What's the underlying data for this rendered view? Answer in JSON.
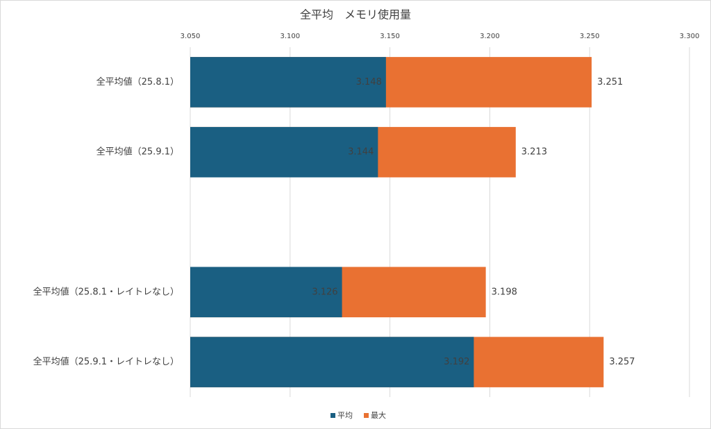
{
  "chart_data": {
    "type": "bar",
    "orientation": "horizontal",
    "overlap": true,
    "title": "全平均　メモリ使用量",
    "categories": [
      "全平均値（25.8.1）",
      "全平均値（25.9.1）",
      null,
      "全平均値（25.8.1・レイトレなし）",
      "全平均値（25.9.1・レイトレなし）"
    ],
    "series": [
      {
        "name": "最大",
        "color": "#e97132",
        "values": [
          3.251,
          3.213,
          null,
          3.198,
          3.257
        ]
      },
      {
        "name": "平均",
        "color": "#1a5f82",
        "values": [
          3.148,
          3.144,
          null,
          3.126,
          3.192
        ]
      }
    ],
    "xlim": [
      3.05,
      3.3
    ],
    "xticks": [
      {
        "value": 3.05,
        "label": "3.050"
      },
      {
        "value": 3.1,
        "label": "3.100"
      },
      {
        "value": 3.15,
        "label": "3.150"
      },
      {
        "value": 3.2,
        "label": "3.200"
      },
      {
        "value": 3.25,
        "label": "3.250"
      },
      {
        "value": 3.3,
        "label": "3.300"
      }
    ],
    "grid": true,
    "legend": "bottom"
  }
}
